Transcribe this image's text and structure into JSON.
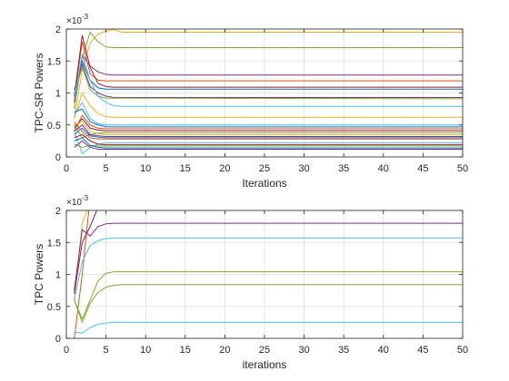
{
  "chart_data": [
    {
      "type": "line",
      "xlabel": "Iterations",
      "ylabel": "TPC-SR Powers",
      "xlim": [
        0,
        50
      ],
      "ylim": [
        0,
        2
      ],
      "y_scale_label": "×10",
      "y_scale_exp": "-3",
      "xticks": [
        0,
        5,
        10,
        15,
        20,
        25,
        30,
        35,
        40,
        45,
        50
      ],
      "yticks": [
        0,
        0.5,
        1,
        1.5,
        2
      ],
      "yticklabels": [
        "0",
        "0.5",
        "1",
        "1.5",
        "2"
      ],
      "grid": true,
      "series": [
        {
          "color": "#EDB120",
          "values": [
            [
              1,
              0.6
            ],
            [
              2,
              1.35
            ],
            [
              3,
              1.78
            ],
            [
              4,
              1.92
            ],
            [
              5,
              1.97
            ],
            [
              6,
              1.99
            ],
            [
              7,
              1.95
            ],
            [
              50,
              1.95
            ]
          ]
        },
        {
          "color": "#77AC30",
          "values": [
            [
              1,
              0.75
            ],
            [
              2,
              1.55
            ],
            [
              3,
              1.95
            ],
            [
              4,
              1.8
            ],
            [
              5,
              1.72
            ],
            [
              6,
              1.71
            ],
            [
              50,
              1.71
            ]
          ]
        },
        {
          "color": "#7E2F8E",
          "values": [
            [
              1,
              0.85
            ],
            [
              2,
              1.6
            ],
            [
              3,
              1.42
            ],
            [
              4,
              1.33
            ],
            [
              5,
              1.29
            ],
            [
              6,
              1.28
            ],
            [
              50,
              1.28
            ]
          ]
        },
        {
          "color": "#D95319",
          "values": [
            [
              1,
              0.9
            ],
            [
              2,
              1.8
            ],
            [
              3,
              1.3
            ],
            [
              4,
              1.2
            ],
            [
              5,
              1.19
            ],
            [
              50,
              1.19
            ]
          ]
        },
        {
          "color": "#A2142F",
          "values": [
            [
              1,
              0.95
            ],
            [
              2,
              1.9
            ],
            [
              3,
              1.4
            ],
            [
              4,
              1.15
            ],
            [
              5,
              1.1
            ],
            [
              6,
              1.09
            ],
            [
              50,
              1.09
            ]
          ]
        },
        {
          "color": "#0072BD",
          "values": [
            [
              1,
              0.95
            ],
            [
              2,
              1.5
            ],
            [
              3,
              1.2
            ],
            [
              4,
              1.08
            ],
            [
              5,
              1.06
            ],
            [
              50,
              1.06
            ]
          ]
        },
        {
          "color": "#7E2F8E",
          "values": [
            [
              1,
              1.05
            ],
            [
              2,
              1.45
            ],
            [
              3,
              1.1
            ],
            [
              4,
              1.0
            ],
            [
              5,
              0.95
            ],
            [
              6,
              0.93
            ],
            [
              50,
              0.93
            ]
          ]
        },
        {
          "color": "#77AC30",
          "values": [
            [
              1,
              1.0
            ],
            [
              2,
              1.4
            ],
            [
              3,
              1.05
            ],
            [
              4,
              0.95
            ],
            [
              5,
              0.92
            ],
            [
              50,
              0.91
            ]
          ]
        },
        {
          "color": "#4DBEEE",
          "values": [
            [
              1,
              0.9
            ],
            [
              2,
              1.6
            ],
            [
              3,
              1.2
            ],
            [
              4,
              0.95
            ],
            [
              5,
              0.85
            ],
            [
              6,
              0.8
            ],
            [
              7,
              0.79
            ],
            [
              50,
              0.79
            ]
          ]
        },
        {
          "color": "#EDB120",
          "values": [
            [
              1,
              0.6
            ],
            [
              2,
              1.0
            ],
            [
              3,
              0.8
            ],
            [
              4,
              0.68
            ],
            [
              5,
              0.63
            ],
            [
              6,
              0.62
            ],
            [
              50,
              0.62
            ]
          ]
        },
        {
          "color": "#4DBEEE",
          "values": [
            [
              1,
              0.65
            ],
            [
              2,
              0.85
            ],
            [
              3,
              0.6
            ],
            [
              4,
              0.52
            ],
            [
              5,
              0.5
            ],
            [
              50,
              0.5
            ]
          ]
        },
        {
          "color": "#0072BD",
          "values": [
            [
              1,
              0.7
            ],
            [
              2,
              0.75
            ],
            [
              3,
              0.55
            ],
            [
              4,
              0.5
            ],
            [
              5,
              0.47
            ],
            [
              50,
              0.47
            ]
          ]
        },
        {
          "color": "#D95319",
          "values": [
            [
              1,
              0.4
            ],
            [
              2,
              0.65
            ],
            [
              3,
              0.5
            ],
            [
              4,
              0.45
            ],
            [
              5,
              0.44
            ],
            [
              50,
              0.44
            ]
          ]
        },
        {
          "color": "#A2142F",
          "values": [
            [
              1,
              0.45
            ],
            [
              2,
              0.6
            ],
            [
              3,
              0.45
            ],
            [
              4,
              0.42
            ],
            [
              5,
              0.41
            ],
            [
              50,
              0.41
            ]
          ]
        },
        {
          "color": "#77AC30",
          "values": [
            [
              1,
              0.5
            ],
            [
              2,
              0.3
            ],
            [
              3,
              0.35
            ],
            [
              4,
              0.37
            ],
            [
              5,
              0.38
            ],
            [
              50,
              0.38
            ]
          ]
        },
        {
          "color": "#EDB120",
          "values": [
            [
              1,
              0.5
            ],
            [
              2,
              0.55
            ],
            [
              3,
              0.4
            ],
            [
              4,
              0.36
            ],
            [
              5,
              0.35
            ],
            [
              50,
              0.35
            ]
          ]
        },
        {
          "color": "#7E2F8E",
          "values": [
            [
              1,
              0.4
            ],
            [
              2,
              0.5
            ],
            [
              3,
              0.35
            ],
            [
              4,
              0.33
            ],
            [
              5,
              0.32
            ],
            [
              50,
              0.32
            ]
          ]
        },
        {
          "color": "#0072BD",
          "values": [
            [
              1,
              0.35
            ],
            [
              2,
              0.45
            ],
            [
              3,
              0.33
            ],
            [
              4,
              0.31
            ],
            [
              5,
              0.3
            ],
            [
              50,
              0.3
            ]
          ]
        },
        {
          "color": "#D95319",
          "values": [
            [
              1,
              0.55
            ],
            [
              2,
              0.4
            ],
            [
              3,
              0.3
            ],
            [
              4,
              0.28
            ],
            [
              5,
              0.28
            ],
            [
              50,
              0.28
            ]
          ]
        },
        {
          "color": "#4DBEEE",
          "values": [
            [
              1,
              0.4
            ],
            [
              2,
              0.05
            ],
            [
              3,
              0.15
            ],
            [
              4,
              0.2
            ],
            [
              5,
              0.22
            ],
            [
              50,
              0.22
            ]
          ]
        },
        {
          "color": "#A2142F",
          "values": [
            [
              1,
              0.3
            ],
            [
              2,
              0.35
            ],
            [
              3,
              0.25
            ],
            [
              4,
              0.2
            ],
            [
              5,
              0.19
            ],
            [
              50,
              0.19
            ]
          ]
        },
        {
          "color": "#77AC30",
          "values": [
            [
              1,
              0.2
            ],
            [
              2,
              0.15
            ],
            [
              3,
              0.18
            ],
            [
              4,
              0.17
            ],
            [
              5,
              0.17
            ],
            [
              50,
              0.17
            ]
          ]
        },
        {
          "color": "#0072BD",
          "values": [
            [
              1,
              0.25
            ],
            [
              2,
              0.3
            ],
            [
              3,
              0.18
            ],
            [
              4,
              0.15
            ],
            [
              5,
              0.14
            ],
            [
              50,
              0.14
            ]
          ]
        },
        {
          "color": "#7E2F8E",
          "values": [
            [
              1,
              0.15
            ],
            [
              2,
              0.25
            ],
            [
              3,
              0.15
            ],
            [
              4,
              0.12
            ],
            [
              5,
              0.12
            ],
            [
              50,
              0.12
            ]
          ]
        }
      ]
    },
    {
      "type": "line",
      "xlabel": "iterations",
      "ylabel": "TPC Powers",
      "xlim": [
        0,
        50
      ],
      "ylim": [
        0,
        2
      ],
      "y_scale_label": "×10",
      "y_scale_exp": "-3",
      "xticks": [
        0,
        5,
        10,
        15,
        20,
        25,
        30,
        35,
        40,
        45,
        50
      ],
      "yticks": [
        0,
        0.5,
        1,
        1.5,
        2
      ],
      "yticklabels": [
        "0",
        "0.5",
        "1",
        "1.5",
        "2"
      ],
      "grid": true,
      "series": [
        {
          "color": "#D95319",
          "values": [
            [
              1,
              0
            ],
            [
              2,
              1.0
            ],
            [
              3,
              2.2
            ],
            [
              50,
              2.2
            ]
          ]
        },
        {
          "color": "#EDB120",
          "values": [
            [
              1,
              0.6
            ],
            [
              2,
              1.8
            ],
            [
              3,
              2.1
            ],
            [
              50,
              2.1
            ]
          ]
        },
        {
          "color": "#7E2F8E",
          "values": [
            [
              1,
              0.75
            ],
            [
              2,
              1.7
            ],
            [
              3,
              1.6
            ],
            [
              4,
              1.75
            ],
            [
              5,
              1.79
            ],
            [
              6,
              1.8
            ],
            [
              50,
              1.8
            ]
          ]
        },
        {
          "color": "#A2142F",
          "values": [
            [
              1,
              0.7
            ],
            [
              2,
              1.5
            ],
            [
              3,
              1.75
            ],
            [
              4,
              2.05
            ],
            [
              50,
              2.05
            ]
          ]
        },
        {
          "color": "#4DBEEE",
          "values": [
            [
              1,
              0.6
            ],
            [
              2,
              1.2
            ],
            [
              3,
              1.45
            ],
            [
              4,
              1.53
            ],
            [
              5,
              1.56
            ],
            [
              6,
              1.57
            ],
            [
              50,
              1.57
            ]
          ]
        },
        {
          "color": "#77AC30",
          "values": [
            [
              1,
              0.6
            ],
            [
              2,
              0.3
            ],
            [
              3,
              0.6
            ],
            [
              4,
              0.9
            ],
            [
              5,
              1.02
            ],
            [
              6,
              1.04
            ],
            [
              50,
              1.04
            ]
          ]
        },
        {
          "color": "#77AC30",
          "values": [
            [
              1,
              0.6
            ],
            [
              2,
              0.25
            ],
            [
              3,
              0.55
            ],
            [
              4,
              0.72
            ],
            [
              5,
              0.8
            ],
            [
              6,
              0.83
            ],
            [
              7,
              0.84
            ],
            [
              50,
              0.84
            ]
          ]
        },
        {
          "color": "#4DBEEE",
          "values": [
            [
              1,
              0.1
            ],
            [
              2,
              0.08
            ],
            [
              3,
              0.17
            ],
            [
              4,
              0.22
            ],
            [
              5,
              0.24
            ],
            [
              6,
              0.25
            ],
            [
              50,
              0.25
            ]
          ]
        }
      ]
    }
  ]
}
